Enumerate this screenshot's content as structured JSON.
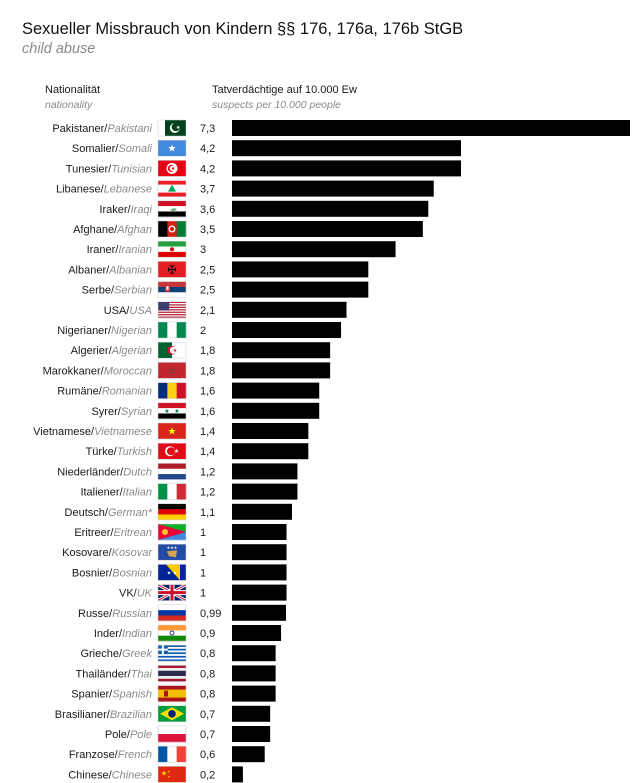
{
  "title": "Sexueller Missbrauch von Kindern §§ 176, 176a, 176b StGB",
  "subtitle": "child abuse",
  "headers": {
    "nationality_de": "Nationalität",
    "nationality_en": "nationality",
    "value_de": "Tatverdächtige auf 10.000 Ew",
    "value_en": "suspects per 10.000 people"
  },
  "colors": {
    "bar": "#000000",
    "label_en": "#8a8a8a"
  },
  "chart_data": {
    "type": "bar",
    "orientation": "horizontal",
    "categories_de": [
      "Pakistaner",
      "Somalier",
      "Tunesier",
      "Libanese",
      "Iraker",
      "Afghane",
      "Iraner",
      "Albaner",
      "Serbe",
      "USA",
      "Nigerianer",
      "Algerier",
      "Marokkaner",
      "Rumäne",
      "Syrer",
      "Vietnamese",
      "Türke",
      "Niederländer",
      "Italiener",
      "Deutsch",
      "Eritreer",
      "Kosovare",
      "Bosnier",
      "VK",
      "Russe",
      "Inder",
      "Grieche",
      "Thailänder",
      "Spanier",
      "Brasilianer",
      "Pole",
      "Franzose",
      "Chinese"
    ],
    "categories_en": [
      "Pakistani",
      "Somali",
      "Tunisian",
      "Lebanese",
      "Iraqi",
      "Afghan",
      "Iranian",
      "Albanian",
      "Serbian",
      "USA",
      "Nigerian",
      "Algerian",
      "Moroccan",
      "Romanian",
      "Syrian",
      "Vietnamese",
      "Turkish",
      "Dutch",
      "Italian",
      "German*",
      "Eritrean",
      "Kosovar",
      "Bosnian",
      "UK",
      "Russian",
      "Indian",
      "Greek",
      "Thai",
      "Spanish",
      "Brazilian",
      "Pole",
      "French",
      "Chinese"
    ],
    "flags": [
      "pakistan-flag",
      "somalia-flag",
      "tunisia-flag",
      "lebanon-flag",
      "iraq-flag",
      "afghanistan-flag",
      "iran-flag",
      "albania-flag",
      "serbia-flag",
      "usa-flag",
      "nigeria-flag",
      "algeria-flag",
      "morocco-flag",
      "romania-flag",
      "syria-flag",
      "vietnam-flag",
      "turkey-flag",
      "netherlands-flag",
      "italy-flag",
      "germany-flag",
      "eritrea-flag",
      "kosovo-flag",
      "bosnia-flag",
      "uk-flag",
      "russia-flag",
      "india-flag",
      "greece-flag",
      "thailand-flag",
      "spain-flag",
      "brazil-flag",
      "poland-flag",
      "france-flag",
      "china-flag"
    ],
    "values": [
      7.3,
      4.2,
      4.2,
      3.7,
      3.6,
      3.5,
      3,
      2.5,
      2.5,
      2.1,
      2,
      1.8,
      1.8,
      1.6,
      1.6,
      1.4,
      1.4,
      1.2,
      1.2,
      1.1,
      1,
      1,
      1,
      1,
      0.99,
      0.9,
      0.8,
      0.8,
      0.8,
      0.7,
      0.7,
      0.6,
      0.2
    ],
    "value_labels": [
      "7,3",
      "4,2",
      "4,2",
      "3,7",
      "3,6",
      "3,5",
      "3",
      "2,5",
      "2,5",
      "2,1",
      "2",
      "1,8",
      "1,8",
      "1,6",
      "1,6",
      "1,4",
      "1,4",
      "1,2",
      "1,2",
      "1,1",
      "1",
      "1",
      "1",
      "1",
      "0,99",
      "0,9",
      "0,8",
      "0,8",
      "0,8",
      "0,7",
      "0,7",
      "0,6",
      "0,2"
    ],
    "xlim": [
      0,
      7.3
    ],
    "grid": false,
    "legend": "none"
  }
}
